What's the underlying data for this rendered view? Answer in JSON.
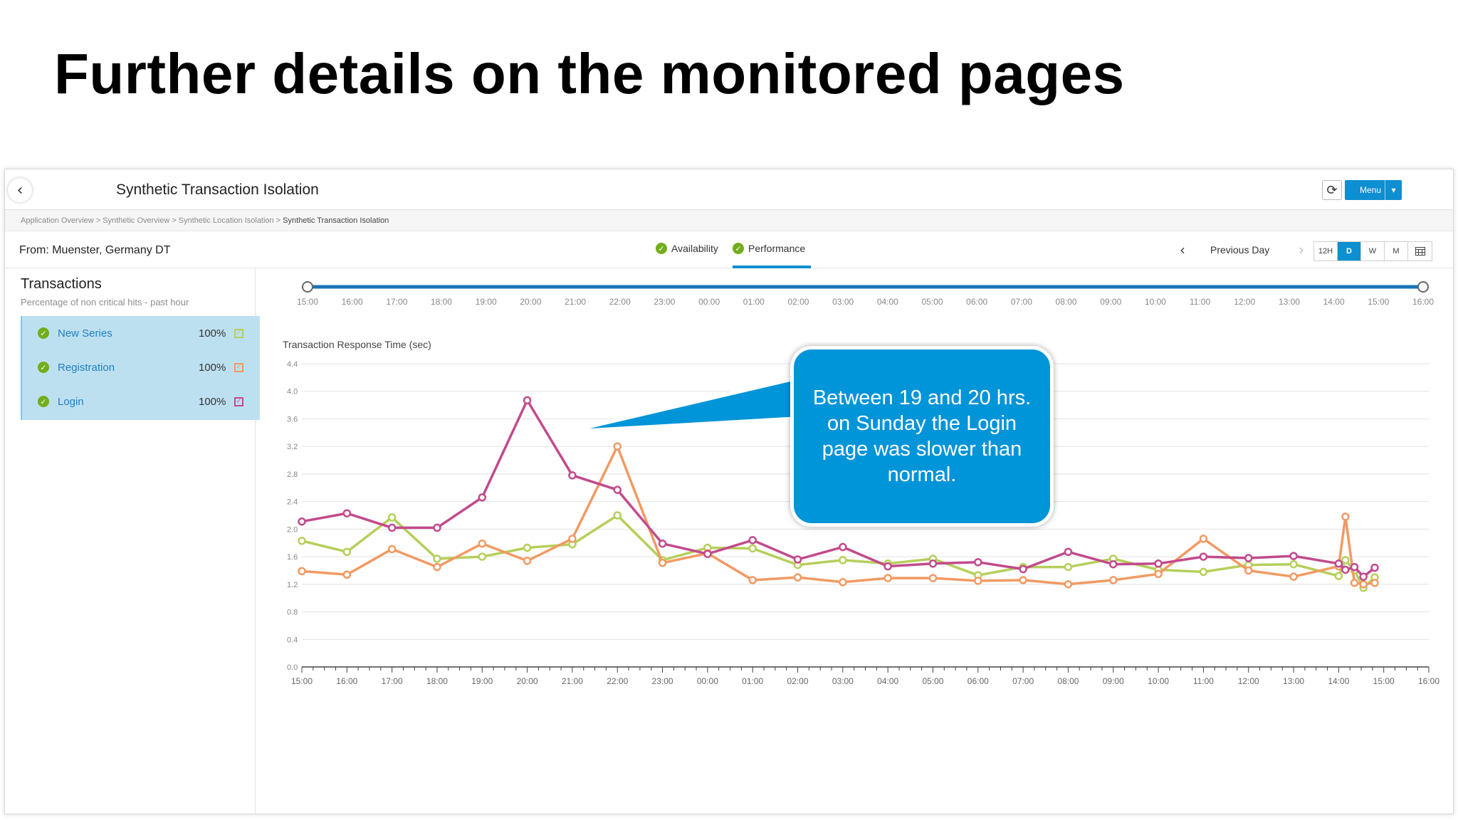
{
  "slide": {
    "title": "Further details on the monitored pages"
  },
  "header": {
    "back_icon": "chevron-left-icon",
    "title": "Synthetic Transaction Isolation",
    "refresh_icon": "refresh-icon",
    "menu_label": "Menu",
    "menu_caret_icon": "chevron-down-icon"
  },
  "breadcrumb": [
    "Application Overview",
    "Synthetic Overview",
    "Synthetic Location Isolation",
    "Synthetic Transaction Isolation"
  ],
  "filter": {
    "from": "From: Muenster, Germany DT",
    "tabs": [
      {
        "label": "Availability",
        "active": false
      },
      {
        "label": "Performance",
        "active": true
      }
    ],
    "previous_day": "Previous Day",
    "ranges": [
      {
        "label": "12H",
        "active": false
      },
      {
        "label": "D",
        "active": true
      },
      {
        "label": "W",
        "active": false
      },
      {
        "label": "M",
        "active": false
      },
      {
        "label": "",
        "icon": "calendar-icon",
        "active": false
      }
    ]
  },
  "transactions": {
    "title": "Transactions",
    "subtitle": "Percentage of non critical hits - past hour",
    "items": [
      {
        "name": "New Series",
        "pct": "100%",
        "color": "#b5cf5a"
      },
      {
        "name": "Registration",
        "pct": "100%",
        "color": "#f29a63"
      },
      {
        "name": "Login",
        "pct": "100%",
        "color": "#c24a8c"
      }
    ]
  },
  "timeline": {
    "ticks": [
      "15:00",
      "16:00",
      "17:00",
      "18:00",
      "19:00",
      "20:00",
      "21:00",
      "22:00",
      "23:00",
      "00:00",
      "01:00",
      "02:00",
      "03:00",
      "04:00",
      "05:00",
      "06:00",
      "07:00",
      "08:00",
      "09:00",
      "10:00",
      "11:00",
      "12:00",
      "13:00",
      "14:00",
      "15:00",
      "16:00"
    ]
  },
  "chart_data": {
    "type": "line",
    "ylabel": "Transaction Response Time (sec)",
    "ylim": [
      0,
      4.4
    ],
    "yticks": [
      "0.0",
      "0.4",
      "0.8",
      "1.2",
      "1.6",
      "2.0",
      "2.4",
      "2.8",
      "3.2",
      "3.6",
      "4.0",
      "4.4"
    ],
    "xticks": [
      "15:00",
      "16:00",
      "17:00",
      "18:00",
      "19:00",
      "20:00",
      "21:00",
      "22:00",
      "23:00",
      "00:00",
      "01:00",
      "02:00",
      "03:00",
      "04:00",
      "05:00",
      "06:00",
      "07:00",
      "08:00",
      "09:00",
      "10:00",
      "11:00",
      "12:00",
      "13:00",
      "14:00",
      "15:00",
      "16:00"
    ],
    "grid": true,
    "series": [
      {
        "name": "New Series",
        "color": "#b5cf5a",
        "x": [
          0,
          1,
          2,
          3,
          4,
          5,
          6,
          7,
          8,
          9,
          10,
          11,
          12,
          13,
          14,
          15,
          16,
          17,
          18,
          19,
          20,
          21,
          22,
          23,
          23.15,
          23.35,
          23.55,
          23.8
        ],
        "values": [
          1.83,
          1.67,
          2.17,
          1.57,
          1.6,
          1.73,
          1.78,
          2.2,
          1.55,
          1.73,
          1.72,
          1.48,
          1.55,
          1.5,
          1.57,
          1.33,
          1.45,
          1.45,
          1.57,
          1.41,
          1.38,
          1.48,
          1.49,
          1.32,
          1.55,
          1.4,
          1.15,
          1.3
        ]
      },
      {
        "name": "Registration",
        "color": "#f29a63",
        "x": [
          0,
          1,
          2,
          3,
          4,
          5,
          6,
          7,
          8,
          9,
          10,
          11,
          12,
          13,
          14,
          15,
          16,
          17,
          18,
          19,
          20,
          21,
          22,
          23,
          23.15,
          23.35,
          23.55,
          23.8
        ],
        "values": [
          1.39,
          1.34,
          1.71,
          1.45,
          1.79,
          1.54,
          1.86,
          3.2,
          1.51,
          1.65,
          1.26,
          1.3,
          1.23,
          1.29,
          1.29,
          1.25,
          1.26,
          1.2,
          1.26,
          1.35,
          1.86,
          1.4,
          1.31,
          1.46,
          2.18,
          1.22,
          1.2,
          1.22
        ]
      },
      {
        "name": "Login",
        "color": "#c24a8c",
        "x": [
          0,
          1,
          2,
          3,
          4,
          5,
          6,
          7,
          8,
          9,
          10,
          11,
          12,
          13,
          14,
          15,
          16,
          17,
          18,
          19,
          20,
          21,
          22,
          23,
          23.15,
          23.35,
          23.55,
          23.8
        ],
        "values": [
          2.11,
          2.23,
          2.02,
          2.02,
          2.46,
          3.87,
          2.78,
          2.57,
          1.79,
          1.64,
          1.84,
          1.56,
          1.74,
          1.46,
          1.5,
          1.52,
          1.42,
          1.67,
          1.49,
          1.5,
          1.6,
          1.58,
          1.61,
          1.5,
          1.41,
          1.45,
          1.31,
          1.44
        ]
      }
    ]
  },
  "callout": {
    "text": "Between 19 and 20 hrs. on Sunday the Login page was slower than normal."
  }
}
